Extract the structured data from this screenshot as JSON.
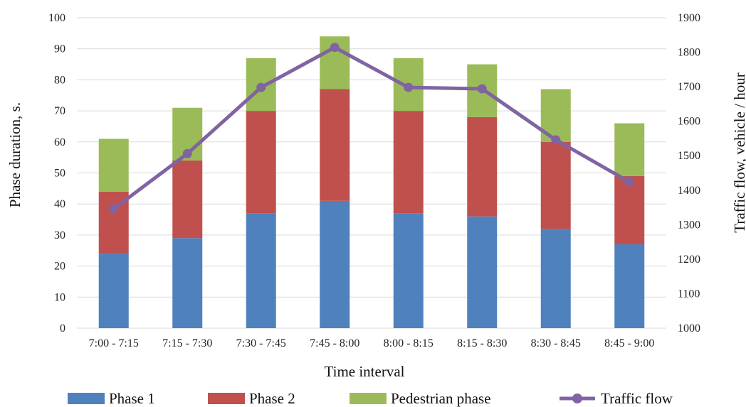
{
  "chart_data": {
    "type": "bar",
    "stacked": true,
    "categories": [
      "7:00 - 7:15",
      "7:15 - 7:30",
      "7:30 - 7:45",
      "7:45 - 8:00",
      "8:00 - 8:15",
      "8:15 - 8:30",
      "8:30 - 8:45",
      "8:45 - 9:00"
    ],
    "series": [
      {
        "name": "Phase 1",
        "color": "#4f81bd",
        "axis": "left",
        "values": [
          24,
          29,
          37,
          41,
          37,
          36,
          32,
          27
        ]
      },
      {
        "name": "Phase 2",
        "color": "#c0504d",
        "axis": "left",
        "values": [
          20,
          25,
          33,
          36,
          33,
          32,
          28,
          22
        ]
      },
      {
        "name": "Pedestrian phase",
        "color": "#9bbb59",
        "axis": "left",
        "values": [
          17,
          17,
          17,
          17,
          17,
          17,
          17,
          17
        ]
      },
      {
        "name": "Traffic flow",
        "type": "line",
        "color": "#8064a2",
        "axis": "right",
        "values": [
          1346,
          1506,
          1698,
          1814,
          1698,
          1694,
          1546,
          1424
        ]
      }
    ],
    "xlabel": "Time interval",
    "ylabel": "Phase duration, s.",
    "y2label": "Traffic flow, vehicle / hour",
    "ylim": [
      0,
      100
    ],
    "y2lim": [
      1000,
      1900
    ],
    "yticks": [
      "0",
      "10",
      "20",
      "30",
      "40",
      "50",
      "60",
      "70",
      "80",
      "90",
      "100"
    ],
    "y2ticks": [
      "1000",
      "1100",
      "1200",
      "1300",
      "1400",
      "1500",
      "1600",
      "1700",
      "1800",
      "1900"
    ],
    "grid": true,
    "legend": "bottom"
  }
}
